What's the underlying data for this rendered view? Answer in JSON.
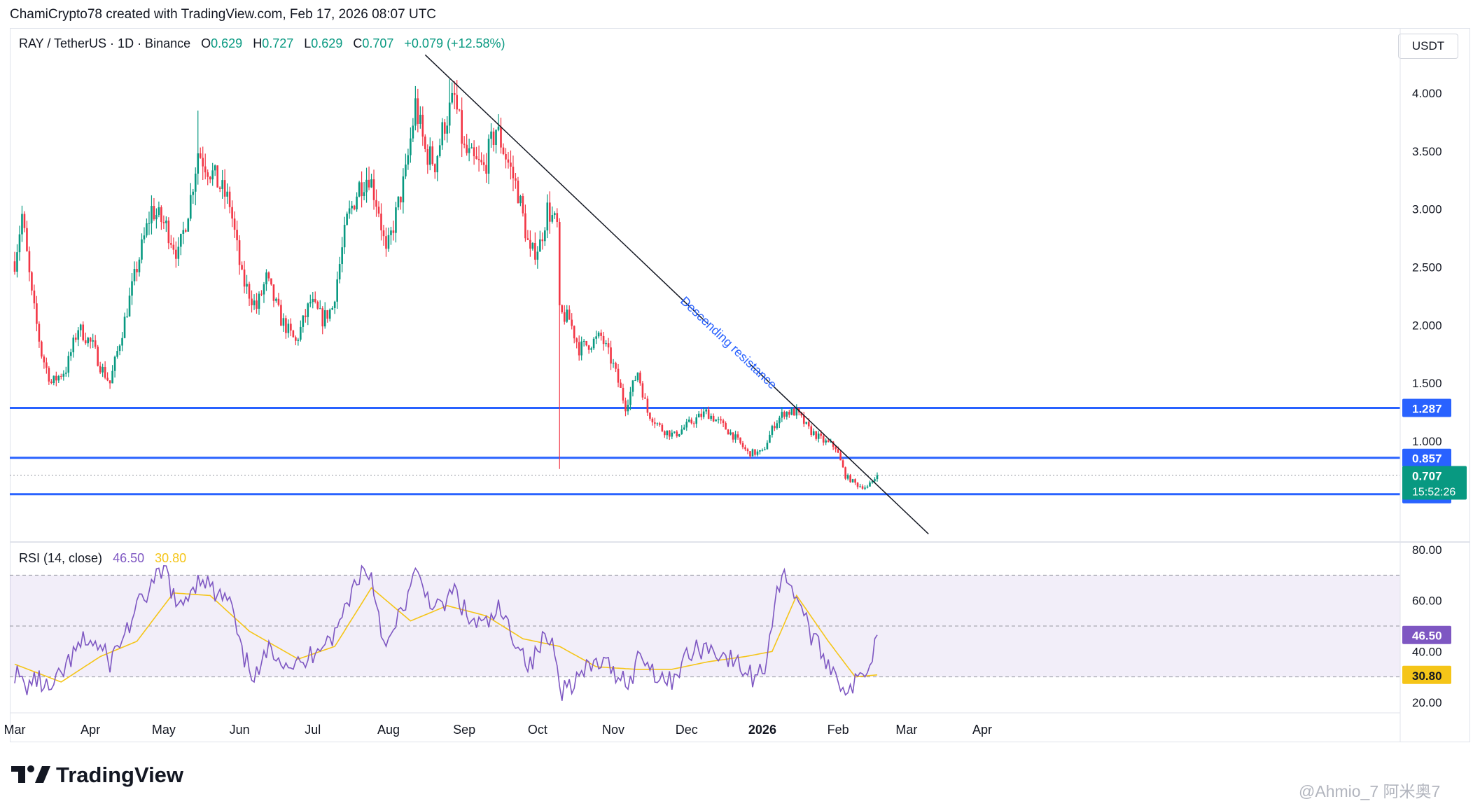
{
  "header": {
    "attribution": "ChamiCrypto78 created with TradingView.com, Feb 17, 2026 08:07 UTC"
  },
  "symbol": {
    "name": "RAY / TetherUS · 1D · Binance",
    "o_label": "O",
    "o": "0.629",
    "h_label": "H",
    "h": "0.727",
    "l_label": "L",
    "l": "0.629",
    "c_label": "C",
    "c": "0.707",
    "change": "+0.079 (+12.58%)"
  },
  "currency_button": "USDT",
  "colors": {
    "up": "#089981",
    "down": "#f23645",
    "level": "#2962ff",
    "trendline": "#131722",
    "rsi_line": "#7e57c2",
    "rsi_ma": "#f5c518",
    "rsi_band": "#7e57c2",
    "current_price_bg": "#089981"
  },
  "annotation": {
    "trendline_text": "Descending resistance"
  },
  "price_axis": {
    "ticks": [
      "4.000",
      "3.500",
      "3.000",
      "2.500",
      "2.000",
      "1.500",
      "1.000"
    ],
    "level_labels": [
      "1.287",
      "0.857",
      "0.543"
    ],
    "current_price": "0.707",
    "countdown": "15:52:26"
  },
  "rsi": {
    "legend_name": "RSI (14, close)",
    "value": "46.50",
    "ma_value": "30.80",
    "ticks": [
      "80.00",
      "60.00",
      "40.00",
      "20.00"
    ]
  },
  "time_axis": {
    "labels": [
      "Mar",
      "Apr",
      "May",
      "Jun",
      "Jul",
      "Aug",
      "Sep",
      "Oct",
      "Nov",
      "Dec",
      "2026",
      "Feb",
      "Mar",
      "Apr"
    ]
  },
  "footer": {
    "brand": "TradingView",
    "watermark": "@Ahmio_7 阿米奥7"
  },
  "chart_data": [
    {
      "type": "candlestick",
      "title": "RAY / TetherUS · 1D · Binance",
      "x_range": [
        "2025-03-01",
        "2026-04-30"
      ],
      "ylim": [
        0.2,
        4.3
      ],
      "anchors": [
        [
          "2025-03-01",
          2.55
        ],
        [
          "2025-03-04",
          2.95
        ],
        [
          "2025-03-08",
          2.25
        ],
        [
          "2025-03-12",
          1.75
        ],
        [
          "2025-03-16",
          1.5
        ],
        [
          "2025-03-22",
          1.62
        ],
        [
          "2025-03-27",
          1.98
        ],
        [
          "2025-04-02",
          1.82
        ],
        [
          "2025-04-05",
          1.65
        ],
        [
          "2025-04-09",
          1.5
        ],
        [
          "2025-04-14",
          1.95
        ],
        [
          "2025-04-20",
          2.5
        ],
        [
          "2025-04-26",
          3.0
        ],
        [
          "2025-05-02",
          2.85
        ],
        [
          "2025-05-07",
          2.6
        ],
        [
          "2025-05-12",
          3.1
        ],
        [
          "2025-05-15",
          3.5
        ],
        [
          "2025-05-21",
          3.3
        ],
        [
          "2025-05-28",
          3.05
        ],
        [
          "2025-06-02",
          2.4
        ],
        [
          "2025-06-08",
          2.15
        ],
        [
          "2025-06-12",
          2.4
        ],
        [
          "2025-06-18",
          2.05
        ],
        [
          "2025-06-24",
          1.85
        ],
        [
          "2025-06-30",
          2.2
        ],
        [
          "2025-07-05",
          2.05
        ],
        [
          "2025-07-09",
          2.15
        ],
        [
          "2025-07-15",
          2.9
        ],
        [
          "2025-07-20",
          3.2
        ],
        [
          "2025-07-24",
          3.3
        ],
        [
          "2025-07-28",
          3.0
        ],
        [
          "2025-07-31",
          2.6
        ],
        [
          "2025-08-04",
          2.95
        ],
        [
          "2025-08-08",
          3.3
        ],
        [
          "2025-08-12",
          3.9
        ],
        [
          "2025-08-16",
          3.5
        ],
        [
          "2025-08-20",
          3.4
        ],
        [
          "2025-08-24",
          3.75
        ],
        [
          "2025-08-28",
          3.95
        ],
        [
          "2025-09-01",
          3.5
        ],
        [
          "2025-09-05",
          3.4
        ],
        [
          "2025-09-09",
          3.35
        ],
        [
          "2025-09-14",
          3.7
        ],
        [
          "2025-09-19",
          3.4
        ],
        [
          "2025-09-23",
          3.15
        ],
        [
          "2025-09-28",
          2.6
        ],
        [
          "2025-10-02",
          2.7
        ],
        [
          "2025-10-05",
          3.0
        ],
        [
          "2025-10-09",
          2.85
        ],
        [
          "2025-10-10",
          2.1
        ],
        [
          "2025-10-14",
          2.05
        ],
        [
          "2025-10-18",
          1.8
        ],
        [
          "2025-10-23",
          1.85
        ],
        [
          "2025-10-27",
          1.9
        ],
        [
          "2025-11-01",
          1.65
        ],
        [
          "2025-11-06",
          1.3
        ],
        [
          "2025-11-11",
          1.6
        ],
        [
          "2025-11-15",
          1.25
        ],
        [
          "2025-11-21",
          1.1
        ],
        [
          "2025-11-26",
          1.05
        ],
        [
          "2025-12-02",
          1.15
        ],
        [
          "2025-12-09",
          1.25
        ],
        [
          "2025-12-15",
          1.15
        ],
        [
          "2025-12-20",
          1.05
        ],
        [
          "2025-12-26",
          0.9
        ],
        [
          "2026-01-01",
          0.9
        ],
        [
          "2026-01-06",
          1.15
        ],
        [
          "2026-01-10",
          1.25
        ],
        [
          "2026-01-15",
          1.25
        ],
        [
          "2026-01-20",
          1.1
        ],
        [
          "2026-01-26",
          1.0
        ],
        [
          "2026-01-31",
          0.95
        ],
        [
          "2026-02-04",
          0.7
        ],
        [
          "2026-02-09",
          0.62
        ],
        [
          "2026-02-13",
          0.6
        ],
        [
          "2026-02-17",
          0.707
        ]
      ],
      "events": [
        {
          "date": "2025-10-10",
          "low": 0.76,
          "high": 2.75
        },
        {
          "date": "2025-08-26",
          "high": 4.12
        },
        {
          "date": "2025-05-15",
          "high": 3.85
        }
      ],
      "horizontal_levels": [
        1.287,
        0.857,
        0.543
      ],
      "current_price_line": 0.707,
      "trendline": {
        "start": [
          "2025-08-16",
          4.33
        ],
        "end": [
          "2026-03-10",
          0.2
        ]
      }
    },
    {
      "type": "line",
      "title": "RSI (14, close)",
      "ylim": [
        15,
        85
      ],
      "band": [
        30,
        70
      ],
      "midline": 50,
      "series_names": [
        "RSI",
        "RSI-based MA"
      ],
      "rsi_anchors": [
        [
          "2025-03-01",
          32
        ],
        [
          "2025-03-05",
          26
        ],
        [
          "2025-03-10",
          29
        ],
        [
          "2025-03-16",
          24
        ],
        [
          "2025-03-22",
          34
        ],
        [
          "2025-03-30",
          45
        ],
        [
          "2025-04-04",
          42
        ],
        [
          "2025-04-09",
          36
        ],
        [
          "2025-04-15",
          47
        ],
        [
          "2025-04-22",
          60
        ],
        [
          "2025-04-28",
          68
        ],
        [
          "2025-05-02",
          72
        ],
        [
          "2025-05-07",
          55
        ],
        [
          "2025-05-12",
          65
        ],
        [
          "2025-05-17",
          70
        ],
        [
          "2025-05-22",
          62
        ],
        [
          "2025-05-28",
          60
        ],
        [
          "2025-06-02",
          38
        ],
        [
          "2025-06-08",
          30
        ],
        [
          "2025-06-14",
          42
        ],
        [
          "2025-06-20",
          36
        ],
        [
          "2025-06-27",
          34
        ],
        [
          "2025-07-04",
          44
        ],
        [
          "2025-07-10",
          46
        ],
        [
          "2025-07-16",
          62
        ],
        [
          "2025-07-21",
          72
        ],
        [
          "2025-07-25",
          70
        ],
        [
          "2025-07-31",
          40
        ],
        [
          "2025-08-06",
          55
        ],
        [
          "2025-08-12",
          70
        ],
        [
          "2025-08-17",
          62
        ],
        [
          "2025-08-22",
          56
        ],
        [
          "2025-08-28",
          64
        ],
        [
          "2025-09-03",
          52
        ],
        [
          "2025-09-10",
          50
        ],
        [
          "2025-09-15",
          56
        ],
        [
          "2025-09-22",
          45
        ],
        [
          "2025-09-28",
          34
        ],
        [
          "2025-10-04",
          46
        ],
        [
          "2025-10-08",
          42
        ],
        [
          "2025-10-11",
          25
        ],
        [
          "2025-10-18",
          30
        ],
        [
          "2025-10-26",
          36
        ],
        [
          "2025-11-02",
          32
        ],
        [
          "2025-11-08",
          28
        ],
        [
          "2025-11-12",
          40
        ],
        [
          "2025-11-17",
          33
        ],
        [
          "2025-11-24",
          28
        ],
        [
          "2025-12-01",
          38
        ],
        [
          "2025-12-08",
          42
        ],
        [
          "2025-12-14",
          40
        ],
        [
          "2025-12-20",
          36
        ],
        [
          "2025-12-28",
          30
        ],
        [
          "2026-01-02",
          34
        ],
        [
          "2026-01-07",
          65
        ],
        [
          "2026-01-11",
          70
        ],
        [
          "2026-01-16",
          60
        ],
        [
          "2026-01-22",
          44
        ],
        [
          "2026-01-28",
          36
        ],
        [
          "2026-02-02",
          28
        ],
        [
          "2026-02-06",
          24
        ],
        [
          "2026-02-10",
          30
        ],
        [
          "2026-02-14",
          36
        ],
        [
          "2026-02-17",
          46.5
        ]
      ],
      "ma_anchors": [
        [
          "2025-03-01",
          35
        ],
        [
          "2025-03-20",
          28
        ],
        [
          "2025-04-05",
          38
        ],
        [
          "2025-04-20",
          44
        ],
        [
          "2025-05-05",
          63
        ],
        [
          "2025-05-20",
          62
        ],
        [
          "2025-06-05",
          48
        ],
        [
          "2025-06-25",
          37
        ],
        [
          "2025-07-10",
          42
        ],
        [
          "2025-07-25",
          65
        ],
        [
          "2025-08-10",
          52
        ],
        [
          "2025-08-25",
          58
        ],
        [
          "2025-09-10",
          54
        ],
        [
          "2025-09-25",
          45
        ],
        [
          "2025-10-10",
          42
        ],
        [
          "2025-10-25",
          34
        ],
        [
          "2025-11-10",
          33
        ],
        [
          "2025-11-25",
          33
        ],
        [
          "2025-12-10",
          36
        ],
        [
          "2025-12-25",
          38
        ],
        [
          "2026-01-05",
          40
        ],
        [
          "2026-01-15",
          62
        ],
        [
          "2026-01-28",
          44
        ],
        [
          "2026-02-08",
          30
        ],
        [
          "2026-02-17",
          30.8
        ]
      ]
    }
  ]
}
